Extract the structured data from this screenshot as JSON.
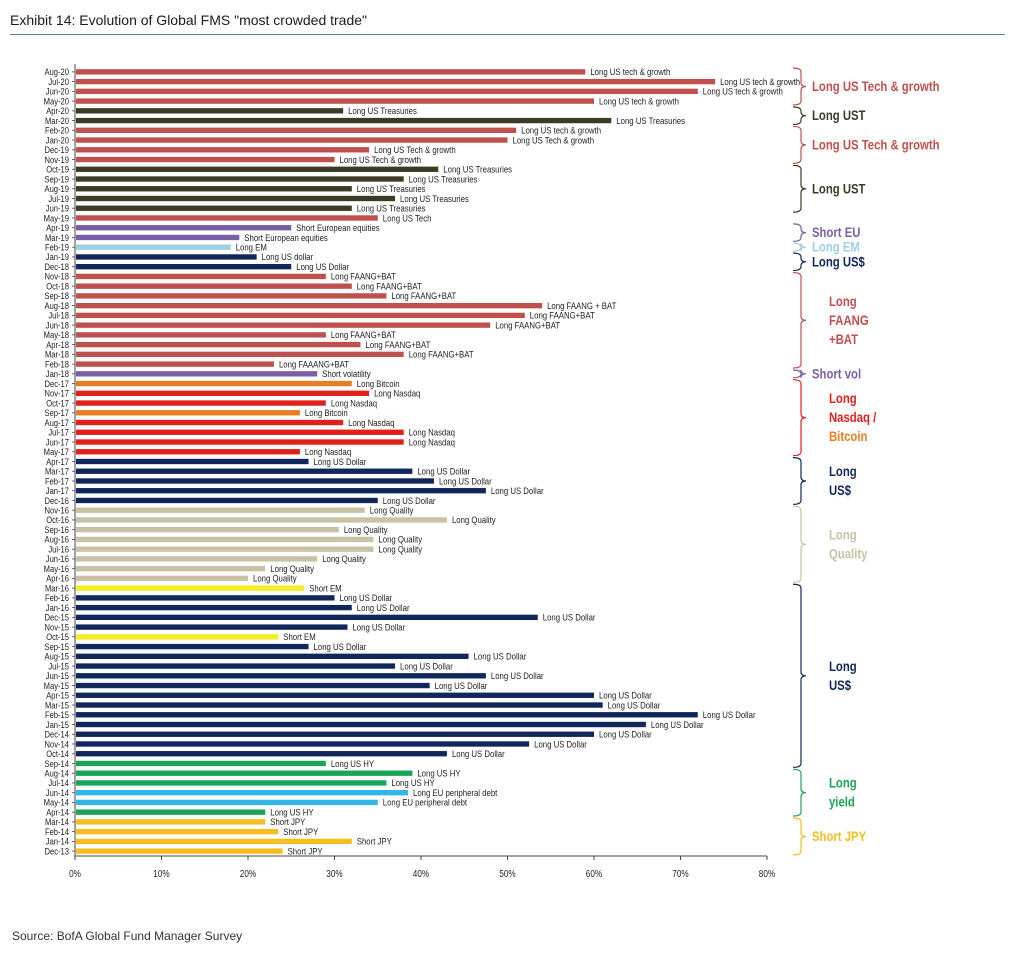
{
  "header": {
    "title": "Exhibit 14: Evolution of Global FMS \"most crowded trade\""
  },
  "footer": {
    "source": "Source: BofA Global Fund Manager Survey"
  },
  "colors": {
    "tech": "#c0504d",
    "ust": "#3d3b24",
    "eu": "#7b5fa6",
    "em": "#9dd0e0",
    "usd": "#10275c",
    "shortvol": "#7b5fa6",
    "nasdaq": "#e1201b",
    "bitcoin": "#ea7d23",
    "quality": "#c9c1a4",
    "shortem": "#f2ee22",
    "yield": "#1aa456",
    "eudebt": "#30b7e6",
    "jpy": "#f5bd20"
  },
  "chart_data": {
    "type": "bar",
    "orientation": "horizontal",
    "title": "",
    "xlim": [
      0,
      80
    ],
    "xticks": [
      "0%",
      "10%",
      "20%",
      "30%",
      "40%",
      "50%",
      "60%",
      "70%",
      "80%"
    ],
    "bars": [
      {
        "month": "Aug-20",
        "value": 59,
        "label": "Long US tech & growth",
        "group": "tech"
      },
      {
        "month": "Jul-20",
        "value": 74,
        "label": "Long US tech & growth",
        "group": "tech"
      },
      {
        "month": "Jun-20",
        "value": 72,
        "label": "Long US tech & growth",
        "group": "tech"
      },
      {
        "month": "May-20",
        "value": 60,
        "label": "Long US tech & growth",
        "group": "tech"
      },
      {
        "month": "Apr-20",
        "value": 31,
        "label": "Long US Treasuries",
        "group": "ust"
      },
      {
        "month": "Mar-20",
        "value": 62,
        "label": "Long US Treasuries",
        "group": "ust"
      },
      {
        "month": "Feb-20",
        "value": 51,
        "label": "Long US tech & growth",
        "group": "tech"
      },
      {
        "month": "Jan-20",
        "value": 50,
        "label": "Long US Tech & growth",
        "group": "tech"
      },
      {
        "month": "Dec-19",
        "value": 34,
        "label": "Long US Tech & growth",
        "group": "tech"
      },
      {
        "month": "Nov-19",
        "value": 30,
        "label": "Long US Tech & growth",
        "group": "tech"
      },
      {
        "month": "Oct-19",
        "value": 42,
        "label": "Long US Treasuries",
        "group": "ust"
      },
      {
        "month": "Sep-19",
        "value": 38,
        "label": "Long US Treasuries",
        "group": "ust"
      },
      {
        "month": "Aug-19",
        "value": 32,
        "label": "Long US Treasuries",
        "group": "ust"
      },
      {
        "month": "Jul-19",
        "value": 37,
        "label": "Long US Treasuries",
        "group": "ust"
      },
      {
        "month": "Jun-19",
        "value": 32,
        "label": "Long US Treasuries",
        "group": "ust"
      },
      {
        "month": "May-19",
        "value": 35,
        "label": "Long US Tech",
        "group": "tech"
      },
      {
        "month": "Apr-19",
        "value": 25,
        "label": "Short European equities",
        "group": "eu"
      },
      {
        "month": "Mar-19",
        "value": 19,
        "label": "Short European equities",
        "group": "eu"
      },
      {
        "month": "Feb-19",
        "value": 18,
        "label": "Long EM",
        "group": "em"
      },
      {
        "month": "Jan-19",
        "value": 21,
        "label": "Long US dollar",
        "group": "usd"
      },
      {
        "month": "Dec-18",
        "value": 25,
        "label": "Long US Dollar",
        "group": "usd"
      },
      {
        "month": "Nov-18",
        "value": 29,
        "label": "Long FAANG+BAT",
        "group": "tech"
      },
      {
        "month": "Oct-18",
        "value": 32,
        "label": "Long FAANG+BAT",
        "group": "tech"
      },
      {
        "month": "Sep-18",
        "value": 36,
        "label": "Long FAANG+BAT",
        "group": "tech"
      },
      {
        "month": "Aug-18",
        "value": 54,
        "label": "Long FAANG + BAT",
        "group": "tech"
      },
      {
        "month": "Jul-18",
        "value": 52,
        "label": "Long FAANG+BAT",
        "group": "tech"
      },
      {
        "month": "Jun-18",
        "value": 48,
        "label": "Long FAANG+BAT",
        "group": "tech"
      },
      {
        "month": "May-18",
        "value": 29,
        "label": "Long FAANG+BAT",
        "group": "tech"
      },
      {
        "month": "Apr-18",
        "value": 33,
        "label": "Long FAANG+BAT",
        "group": "tech"
      },
      {
        "month": "Mar-18",
        "value": 38,
        "label": "Long FAANG+BAT",
        "group": "tech"
      },
      {
        "month": "Feb-18",
        "value": 23,
        "label": "Long FAAANG+BAT",
        "group": "tech"
      },
      {
        "month": "Jan-18",
        "value": 28,
        "label": "Short volatility",
        "group": "shortvol"
      },
      {
        "month": "Dec-17",
        "value": 32,
        "label": "Long Bitcoin",
        "group": "bitcoin"
      },
      {
        "month": "Nov-17",
        "value": 34,
        "label": "Long Nasdaq",
        "group": "nasdaq"
      },
      {
        "month": "Oct-17",
        "value": 29,
        "label": "Long Nasdaq",
        "group": "nasdaq"
      },
      {
        "month": "Sep-17",
        "value": 26,
        "label": "Long Bitcoin",
        "group": "bitcoin"
      },
      {
        "month": "Aug-17",
        "value": 31,
        "label": "Long Nasdaq",
        "group": "nasdaq"
      },
      {
        "month": "Jul-17",
        "value": 38,
        "label": "Long Nasdaq",
        "group": "nasdaq"
      },
      {
        "month": "Jun-17",
        "value": 38,
        "label": "Long Nasdaq",
        "group": "nasdaq"
      },
      {
        "month": "May-17",
        "value": 26,
        "label": "Long Nasdaq",
        "group": "nasdaq"
      },
      {
        "month": "Apr-17",
        "value": 27,
        "label": "Long US Dollar",
        "group": "usd"
      },
      {
        "month": "Mar-17",
        "value": 39,
        "label": "Long US Dollar",
        "group": "usd"
      },
      {
        "month": "Feb-17",
        "value": 41.5,
        "label": "Long US Dollar",
        "group": "usd"
      },
      {
        "month": "Jan-17",
        "value": 47.5,
        "label": "Long US Dollar",
        "group": "usd"
      },
      {
        "month": "Dec-16",
        "value": 35,
        "label": "Long US Dollar",
        "group": "usd"
      },
      {
        "month": "Nov-16",
        "value": 33.5,
        "label": "Long Quality",
        "group": "quality"
      },
      {
        "month": "Oct-16",
        "value": 43,
        "label": "Long Quality",
        "group": "quality"
      },
      {
        "month": "Sep-16",
        "value": 30.5,
        "label": "Long Quality",
        "group": "quality"
      },
      {
        "month": "Aug-16",
        "value": 34.5,
        "label": "Long Quality",
        "group": "quality"
      },
      {
        "month": "Jul-16",
        "value": 34.5,
        "label": "Long Quality",
        "group": "quality"
      },
      {
        "month": "Jun-16",
        "value": 28,
        "label": "Long Quality",
        "group": "quality"
      },
      {
        "month": "May-16",
        "value": 22,
        "label": "Long Quality",
        "group": "quality"
      },
      {
        "month": "Apr-16",
        "value": 20,
        "label": "Long Quality",
        "group": "quality"
      },
      {
        "month": "Mar-16",
        "value": 26.5,
        "label": "Short EM",
        "group": "shortem"
      },
      {
        "month": "Feb-16",
        "value": 30,
        "label": "Long US Dollar",
        "group": "usd"
      },
      {
        "month": "Jan-16",
        "value": 32,
        "label": "Long US Dollar",
        "group": "usd"
      },
      {
        "month": "Dec-15",
        "value": 53.5,
        "label": "Long US Dollar",
        "group": "usd"
      },
      {
        "month": "Nov-15",
        "value": 31.5,
        "label": "Long US Dollar",
        "group": "usd"
      },
      {
        "month": "Oct-15",
        "value": 23.5,
        "label": "Short EM",
        "group": "shortem"
      },
      {
        "month": "Sep-15",
        "value": 27,
        "label": "Long US Dollar",
        "group": "usd"
      },
      {
        "month": "Aug-15",
        "value": 45.5,
        "label": "Long US Dollar",
        "group": "usd"
      },
      {
        "month": "Jul-15",
        "value": 37,
        "label": "Long US Dollar",
        "group": "usd"
      },
      {
        "month": "Jun-15",
        "value": 47.5,
        "label": "Long US Dollar",
        "group": "usd"
      },
      {
        "month": "May-15",
        "value": 41,
        "label": "Long US Dollar",
        "group": "usd"
      },
      {
        "month": "Apr-15",
        "value": 60,
        "label": "Long US Dollar",
        "group": "usd"
      },
      {
        "month": "Mar-15",
        "value": 61,
        "label": "Long US Dollar",
        "group": "usd"
      },
      {
        "month": "Feb-15",
        "value": 72,
        "label": "Long US Dollar",
        "group": "usd"
      },
      {
        "month": "Jan-15",
        "value": 66,
        "label": "Long US Dollar",
        "group": "usd"
      },
      {
        "month": "Dec-14",
        "value": 60,
        "label": "Long US Dollar",
        "group": "usd"
      },
      {
        "month": "Nov-14",
        "value": 52.5,
        "label": "Long US Dollar",
        "group": "usd"
      },
      {
        "month": "Oct-14",
        "value": 43,
        "label": "Long US Dollar",
        "group": "usd"
      },
      {
        "month": "Sep-14",
        "value": 29,
        "label": "Long US HY",
        "group": "yield"
      },
      {
        "month": "Aug-14",
        "value": 39,
        "label": "Long US HY",
        "group": "yield"
      },
      {
        "month": "Jul-14",
        "value": 36,
        "label": "Long US HY",
        "group": "yield"
      },
      {
        "month": "Jun-14",
        "value": 38.5,
        "label": "Long EU peripheral debt",
        "group": "eudebt"
      },
      {
        "month": "May-14",
        "value": 35,
        "label": "Long EU peripheral debt",
        "group": "eudebt"
      },
      {
        "month": "Apr-14",
        "value": 22,
        "label": "Long US HY",
        "group": "yield"
      },
      {
        "month": "Mar-14",
        "value": 22,
        "label": "Short JPY",
        "group": "jpy"
      },
      {
        "month": "Feb-14",
        "value": 23.5,
        "label": "Short JPY",
        "group": "jpy"
      },
      {
        "month": "Jan-14",
        "value": 32,
        "label": "Short JPY",
        "group": "jpy"
      },
      {
        "month": "Dec-13",
        "value": 24,
        "label": "Short JPY",
        "group": "jpy"
      }
    ],
    "braces": [
      {
        "from": 0,
        "to": 3,
        "lines": [
          "Long US Tech & growth"
        ],
        "group": "tech"
      },
      {
        "from": 4,
        "to": 5,
        "lines": [
          "Long UST"
        ],
        "group": "ust"
      },
      {
        "from": 6,
        "to": 9,
        "lines": [
          "Long US Tech & growth"
        ],
        "group": "tech"
      },
      {
        "from": 10,
        "to": 14,
        "lines": [
          "Long UST"
        ],
        "group": "ust"
      },
      {
        "from": 16,
        "to": 17,
        "lines": [
          "Short EU"
        ],
        "group": "eu"
      },
      {
        "from": 18,
        "to": 18,
        "lines": [
          "Long EM"
        ],
        "group": "em"
      },
      {
        "from": 19,
        "to": 20,
        "lines": [
          "Long US$"
        ],
        "group": "usd"
      },
      {
        "from": 21,
        "to": 30,
        "lines": [
          "Long",
          "FAANG",
          "+BAT"
        ],
        "group": "tech"
      },
      {
        "from": 31,
        "to": 31,
        "lines": [
          "Short vol"
        ],
        "group": "shortvol"
      },
      {
        "from": 32,
        "to": 39,
        "lines": [
          "Long",
          "Nasdaq /",
          "Bitcoin"
        ],
        "group": "nasdaq",
        "accent": {
          "line": 2,
          "group": "bitcoin"
        }
      },
      {
        "from": 40,
        "to": 44,
        "lines": [
          "Long",
          "US$"
        ],
        "group": "usd"
      },
      {
        "from": 45,
        "to": 52,
        "lines": [
          "Long",
          "Quality"
        ],
        "group": "quality"
      },
      {
        "from": 53,
        "to": 71,
        "lines": [
          "Long",
          "US$"
        ],
        "group": "usd"
      },
      {
        "from": 72,
        "to": 76,
        "lines": [
          "Long",
          "yield"
        ],
        "group": "yield"
      },
      {
        "from": 77,
        "to": 80,
        "lines": [
          "Short JPY"
        ],
        "group": "jpy"
      }
    ]
  }
}
